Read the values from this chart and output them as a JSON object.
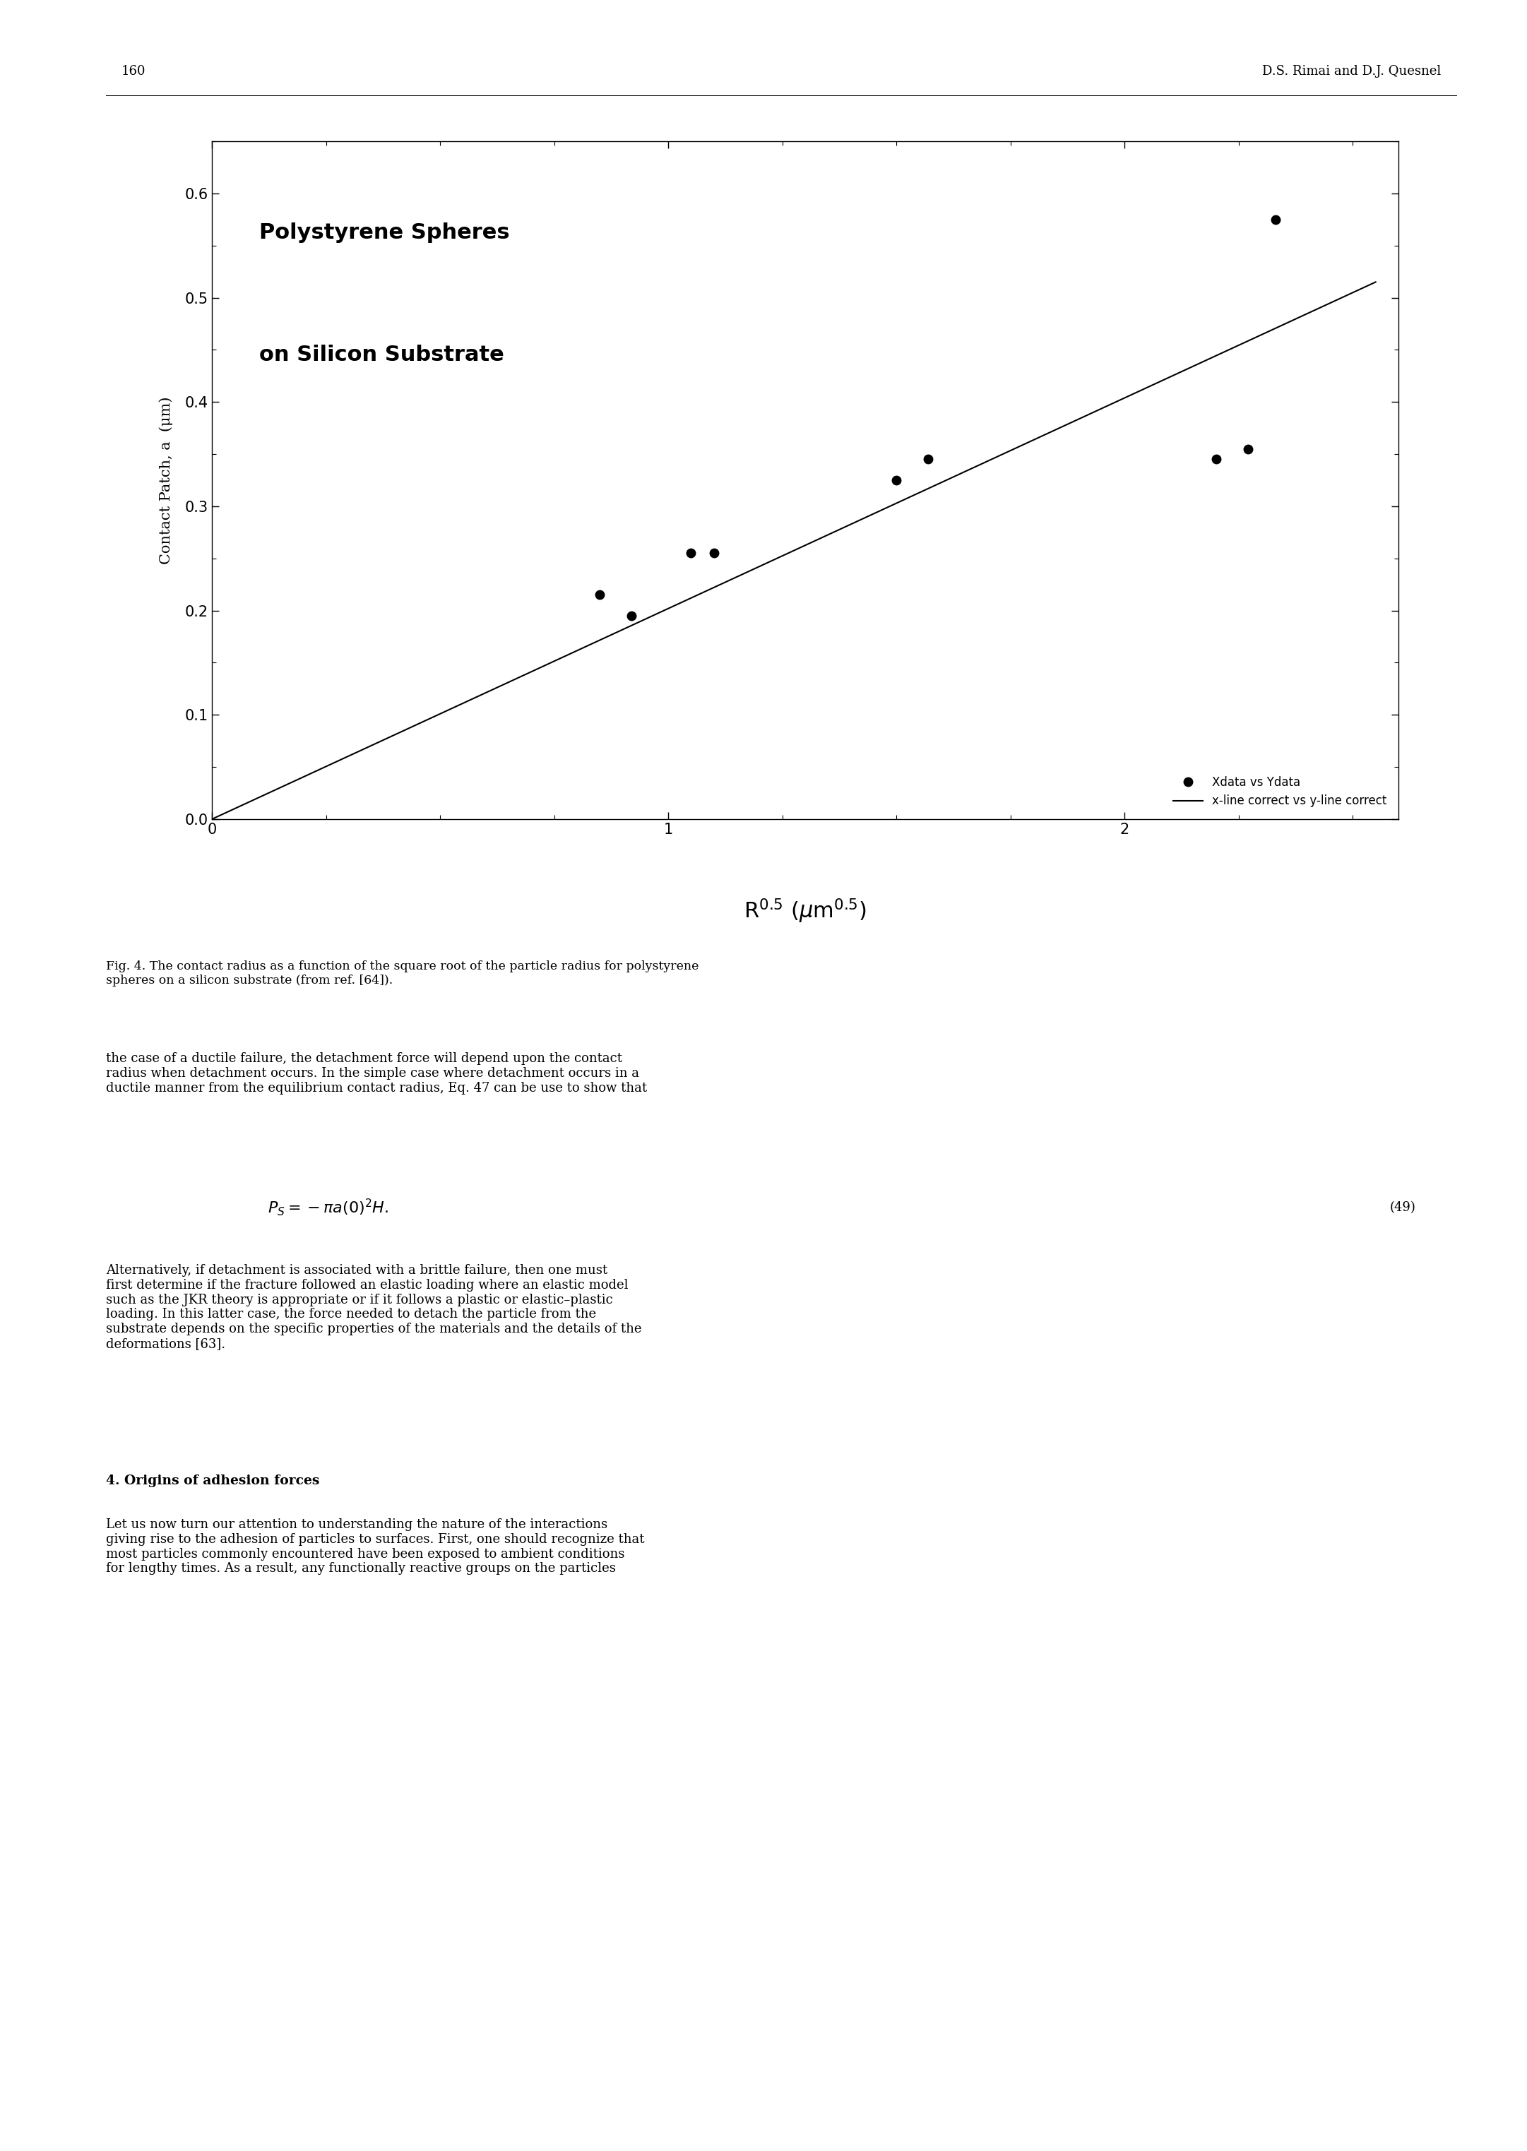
{
  "page_number": "160",
  "header_right": "D.S. Rimai and D.J. Quesnel",
  "scatter_x": [
    0.85,
    0.92,
    1.05,
    1.1,
    1.5,
    1.57,
    2.2,
    2.27,
    2.33
  ],
  "scatter_y": [
    0.215,
    0.195,
    0.255,
    0.255,
    0.325,
    0.345,
    0.345,
    0.355,
    0.575
  ],
  "line_x": [
    0.0,
    2.55
  ],
  "line_y": [
    0.0,
    0.515
  ],
  "xlim": [
    0,
    2.6
  ],
  "ylim": [
    0.0,
    0.65
  ],
  "xticks": [
    0,
    1,
    2
  ],
  "yticks": [
    0.0,
    0.1,
    0.2,
    0.3,
    0.4,
    0.5,
    0.6
  ],
  "ylabel": "Contact Patch, a  (μm)",
  "annotation_line1": "Polystyrene Spheres",
  "annotation_line2": "on Silicon Substrate",
  "legend_data_label": "Xdata vs Ydata",
  "legend_line_label": "x-line correct vs y-line correct",
  "scatter_color": "#000000",
  "line_color": "#000000",
  "marker_size": 9,
  "caption": "Fig. 4. The contact radius as a function of the square root of the particle radius for polystyrene\nspheres on a silicon substrate (from ref. [64]).",
  "body_text": "the case of a ductile failure, the detachment force will depend upon the contact\nradius when detachment occurs. In the simple case where detachment occurs in a\nductile manner from the equilibrium contact radius, Eq. 47 can be use to show that",
  "equation_number": "(49)",
  "body_text2": "Alternatively, if detachment is associated with a brittle failure, then one must\nfirst determine if the fracture followed an elastic loading where an elastic model\nsuch as the JKR theory is appropriate or if it follows a plastic or elastic–plastic\nloading. In this latter case, the force needed to detach the particle from the\nsubstrate depends on the specific properties of the materials and the details of the\ndeformations [63].",
  "section_header": "4. Origins of adhesion forces",
  "body_text3": "Let us now turn our attention to understanding the nature of the interactions\ngiving rise to the adhesion of particles to surfaces. First, one should recognize that\nmost particles commonly encountered have been exposed to ambient conditions\nfor lengthy times. As a result, any functionally reactive groups on the particles"
}
